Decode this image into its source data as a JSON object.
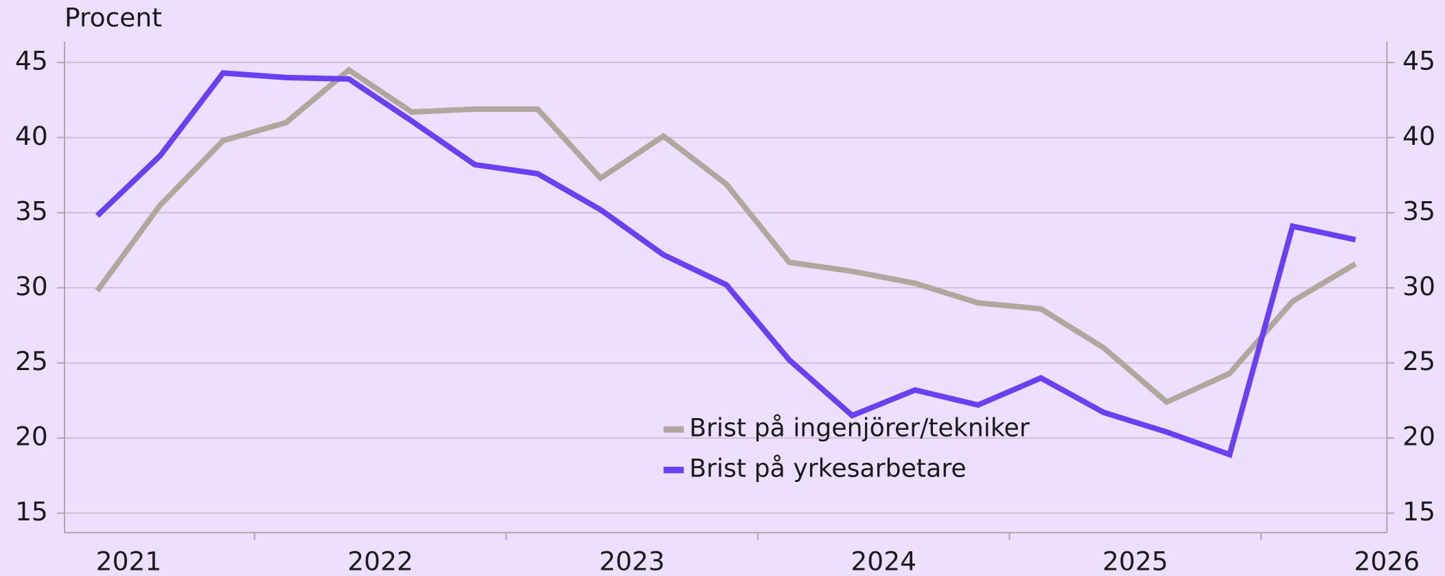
{
  "chart_data": {
    "type": "line",
    "y_label": "Procent",
    "x": [
      2021.375,
      2021.625,
      2021.875,
      2022.125,
      2022.375,
      2022.625,
      2022.875,
      2023.125,
      2023.375,
      2023.625,
      2023.875,
      2024.125,
      2024.375,
      2024.625,
      2024.875,
      2025.125,
      2025.375,
      2025.625,
      2025.875,
      2026.125,
      2026.375
    ],
    "series": [
      {
        "name": "Brist på ingenjörer/tekniker",
        "color": "#b2a79c",
        "values": [
          29.8,
          35.5,
          39.8,
          41.0,
          44.5,
          41.7,
          41.9,
          41.9,
          37.3,
          40.1,
          36.9,
          31.7,
          31.1,
          30.3,
          29.0,
          28.6,
          26.0,
          22.4,
          24.3,
          29.1,
          31.6
        ]
      },
      {
        "name": "Brist på yrkesarbetare",
        "color": "#6b40f2",
        "values": [
          34.8,
          38.8,
          44.3,
          44.0,
          43.9,
          41.1,
          38.2,
          37.6,
          35.2,
          32.2,
          30.2,
          25.2,
          21.5,
          23.2,
          22.2,
          24.0,
          21.7,
          20.4,
          18.9,
          34.1,
          33.2
        ]
      }
    ],
    "xlim": [
      2021.245,
      2026.5
    ],
    "xticks": [
      {
        "value": 2021.5,
        "label": "2021"
      },
      {
        "value": 2022.5,
        "label": "2022"
      },
      {
        "value": 2023.5,
        "label": "2023"
      },
      {
        "value": 2024.5,
        "label": "2024"
      },
      {
        "value": 2025.5,
        "label": "2025"
      },
      {
        "value": 2026.5,
        "label": "2026"
      }
    ],
    "xtick_marks": [
      2022,
      2023,
      2024,
      2025,
      2026
    ],
    "ylim": [
      13.7,
      46.4
    ],
    "yticks": [
      15,
      20,
      25,
      30,
      35,
      40,
      45
    ],
    "y2lim": [
      13.7,
      46.4
    ],
    "y2ticks": [
      15,
      20,
      25,
      30,
      35,
      40,
      45
    ],
    "grid": true
  }
}
